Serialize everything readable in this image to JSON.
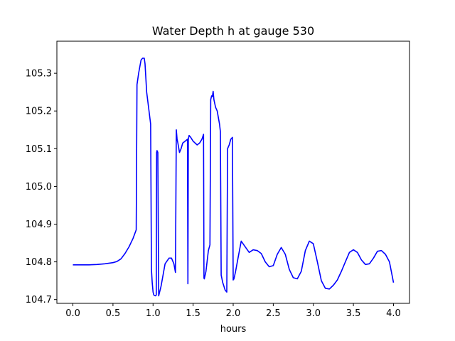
{
  "chart_data": {
    "type": "line",
    "title": "Water Depth h at gauge 530",
    "xlabel": "hours",
    "ylabel": "",
    "xlim": [
      -0.2,
      4.2
    ],
    "ylim": [
      104.69,
      105.385
    ],
    "xticks": [
      0.0,
      0.5,
      1.0,
      1.5,
      2.0,
      2.5,
      3.0,
      3.5,
      4.0
    ],
    "xtick_labels": [
      "0.0",
      "0.5",
      "1.0",
      "1.5",
      "2.0",
      "2.5",
      "3.0",
      "3.5",
      "4.0"
    ],
    "yticks": [
      104.7,
      104.8,
      104.9,
      105.0,
      105.1,
      105.2,
      105.3
    ],
    "ytick_labels": [
      "104.7",
      "104.8",
      "104.9",
      "105.0",
      "105.1",
      "105.2",
      "105.3"
    ],
    "grid": false,
    "series": [
      {
        "color": "#0000ff",
        "x": [
          0.0,
          0.1,
          0.2,
          0.3,
          0.4,
          0.5,
          0.55,
          0.6,
          0.65,
          0.7,
          0.75,
          0.79,
          0.8,
          0.82,
          0.85,
          0.87,
          0.89,
          0.9,
          0.92,
          0.95,
          0.97,
          0.98,
          0.99,
          1.0,
          1.01,
          1.03,
          1.04,
          1.045,
          1.05,
          1.06,
          1.07,
          1.1,
          1.15,
          1.2,
          1.23,
          1.26,
          1.28,
          1.29,
          1.3,
          1.31,
          1.33,
          1.35,
          1.37,
          1.4,
          1.43,
          1.435,
          1.44,
          1.445,
          1.45,
          1.47,
          1.5,
          1.55,
          1.58,
          1.61,
          1.63,
          1.635,
          1.64,
          1.66,
          1.69,
          1.71,
          1.72,
          1.73,
          1.74,
          1.75,
          1.76,
          1.78,
          1.8,
          1.83,
          1.84,
          1.85,
          1.87,
          1.9,
          1.92,
          1.93,
          1.94,
          1.95,
          1.97,
          1.99,
          2.0,
          2.01,
          2.03,
          2.06,
          2.1,
          2.15,
          2.2,
          2.25,
          2.3,
          2.35,
          2.4,
          2.45,
          2.5,
          2.55,
          2.6,
          2.65,
          2.7,
          2.75,
          2.8,
          2.85,
          2.9,
          2.95,
          3.0,
          3.05,
          3.1,
          3.15,
          3.2,
          3.25,
          3.3,
          3.35,
          3.4,
          3.45,
          3.5,
          3.55,
          3.6,
          3.65,
          3.7,
          3.75,
          3.8,
          3.85,
          3.9,
          3.95,
          4.0
        ],
        "y": [
          104.792,
          104.792,
          104.792,
          104.793,
          104.795,
          104.798,
          104.801,
          104.808,
          104.822,
          104.84,
          104.862,
          104.885,
          105.27,
          105.3,
          105.335,
          105.34,
          105.34,
          105.325,
          105.25,
          105.2,
          105.165,
          104.78,
          104.745,
          104.72,
          104.712,
          104.71,
          104.712,
          105.09,
          105.095,
          105.09,
          104.71,
          104.735,
          104.795,
          104.81,
          104.81,
          104.795,
          104.772,
          105.15,
          105.125,
          105.115,
          105.09,
          105.1,
          105.115,
          105.12,
          105.125,
          104.742,
          105.125,
          105.13,
          105.135,
          105.13,
          105.12,
          105.11,
          105.115,
          105.125,
          105.138,
          104.757,
          104.755,
          104.775,
          104.83,
          104.845,
          105.23,
          105.24,
          105.238,
          105.252,
          105.23,
          105.21,
          105.2,
          105.165,
          105.145,
          104.765,
          104.745,
          104.725,
          104.72,
          105.1,
          105.105,
          105.11,
          105.125,
          105.13,
          104.752,
          104.755,
          104.775,
          104.81,
          104.855,
          104.84,
          104.825,
          104.832,
          104.83,
          104.822,
          104.8,
          104.787,
          104.79,
          104.82,
          104.838,
          104.82,
          104.78,
          104.758,
          104.755,
          104.775,
          104.83,
          104.855,
          104.848,
          104.8,
          104.75,
          104.73,
          104.728,
          104.738,
          104.752,
          104.775,
          104.8,
          104.825,
          104.832,
          104.825,
          104.805,
          104.793,
          104.795,
          104.81,
          104.828,
          104.83,
          104.82,
          104.8,
          104.745
        ]
      }
    ]
  }
}
